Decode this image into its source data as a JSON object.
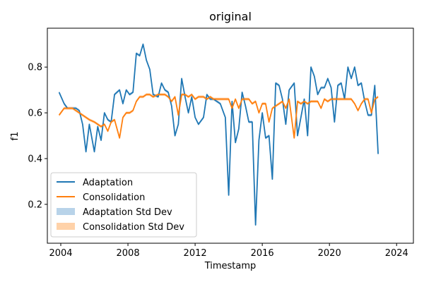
{
  "chart_data": {
    "type": "line",
    "title": "original",
    "xlabel": "Timestamp",
    "ylabel": "f1",
    "x_ticks": [
      2004,
      2008,
      2012,
      2016,
      2020,
      2024
    ],
    "y_ticks": [
      0.2,
      0.4,
      0.6,
      0.8
    ],
    "xlim": [
      2003.2,
      2025.0
    ],
    "ylim": [
      0.03,
      0.97
    ],
    "legend_position": "lower-left",
    "legend": [
      "Adaptation",
      "Consolidation",
      "Adaptation Std Dev",
      "Consolidation Std Dev"
    ],
    "series": [
      {
        "name": "Adaptation",
        "color": "#1f77b4",
        "points": [
          [
            2003.9,
            0.69
          ],
          [
            2004.2,
            0.64
          ],
          [
            2004.4,
            0.62
          ],
          [
            2004.7,
            0.62
          ],
          [
            2004.9,
            0.62
          ],
          [
            2005.1,
            0.61
          ],
          [
            2005.3,
            0.55
          ],
          [
            2005.5,
            0.43
          ],
          [
            2005.7,
            0.55
          ],
          [
            2006.0,
            0.43
          ],
          [
            2006.2,
            0.54
          ],
          [
            2006.4,
            0.48
          ],
          [
            2006.6,
            0.6
          ],
          [
            2006.8,
            0.57
          ],
          [
            2007.0,
            0.56
          ],
          [
            2007.2,
            0.68
          ],
          [
            2007.5,
            0.7
          ],
          [
            2007.7,
            0.64
          ],
          [
            2007.9,
            0.7
          ],
          [
            2008.1,
            0.68
          ],
          [
            2008.3,
            0.69
          ],
          [
            2008.5,
            0.86
          ],
          [
            2008.7,
            0.85
          ],
          [
            2008.9,
            0.9
          ],
          [
            2009.1,
            0.83
          ],
          [
            2009.3,
            0.79
          ],
          [
            2009.5,
            0.68
          ],
          [
            2009.8,
            0.67
          ],
          [
            2010.0,
            0.73
          ],
          [
            2010.2,
            0.7
          ],
          [
            2010.4,
            0.69
          ],
          [
            2010.6,
            0.63
          ],
          [
            2010.8,
            0.5
          ],
          [
            2011.0,
            0.55
          ],
          [
            2011.2,
            0.75
          ],
          [
            2011.4,
            0.67
          ],
          [
            2011.6,
            0.6
          ],
          [
            2011.8,
            0.67
          ],
          [
            2012.0,
            0.58
          ],
          [
            2012.2,
            0.55
          ],
          [
            2012.5,
            0.58
          ],
          [
            2012.7,
            0.68
          ],
          [
            2012.9,
            0.66
          ],
          [
            2013.1,
            0.66
          ],
          [
            2013.3,
            0.65
          ],
          [
            2013.5,
            0.64
          ],
          [
            2013.8,
            0.58
          ],
          [
            2014.0,
            0.24
          ],
          [
            2014.2,
            0.65
          ],
          [
            2014.4,
            0.47
          ],
          [
            2014.6,
            0.53
          ],
          [
            2014.8,
            0.69
          ],
          [
            2015.0,
            0.63
          ],
          [
            2015.2,
            0.56
          ],
          [
            2015.4,
            0.56
          ],
          [
            2015.6,
            0.11
          ],
          [
            2015.8,
            0.48
          ],
          [
            2016.0,
            0.6
          ],
          [
            2016.2,
            0.49
          ],
          [
            2016.4,
            0.5
          ],
          [
            2016.6,
            0.31
          ],
          [
            2016.8,
            0.73
          ],
          [
            2017.0,
            0.72
          ],
          [
            2017.2,
            0.66
          ],
          [
            2017.4,
            0.55
          ],
          [
            2017.6,
            0.7
          ],
          [
            2017.9,
            0.73
          ],
          [
            2018.1,
            0.5
          ],
          [
            2018.3,
            0.58
          ],
          [
            2018.5,
            0.66
          ],
          [
            2018.7,
            0.5
          ],
          [
            2018.9,
            0.8
          ],
          [
            2019.1,
            0.76
          ],
          [
            2019.3,
            0.68
          ],
          [
            2019.5,
            0.71
          ],
          [
            2019.7,
            0.71
          ],
          [
            2019.9,
            0.75
          ],
          [
            2020.1,
            0.71
          ],
          [
            2020.3,
            0.56
          ],
          [
            2020.5,
            0.72
          ],
          [
            2020.7,
            0.73
          ],
          [
            2020.9,
            0.66
          ],
          [
            2021.1,
            0.8
          ],
          [
            2021.3,
            0.75
          ],
          [
            2021.5,
            0.8
          ],
          [
            2021.7,
            0.72
          ],
          [
            2021.9,
            0.73
          ],
          [
            2022.1,
            0.65
          ],
          [
            2022.3,
            0.59
          ],
          [
            2022.5,
            0.59
          ],
          [
            2022.7,
            0.72
          ],
          [
            2022.9,
            0.42
          ]
        ]
      },
      {
        "name": "Consolidation",
        "color": "#ff7f0e",
        "points": [
          [
            2003.9,
            0.59
          ],
          [
            2004.2,
            0.62
          ],
          [
            2004.4,
            0.62
          ],
          [
            2004.7,
            0.62
          ],
          [
            2004.9,
            0.61
          ],
          [
            2005.1,
            0.6
          ],
          [
            2005.3,
            0.59
          ],
          [
            2005.5,
            0.58
          ],
          [
            2005.7,
            0.57
          ],
          [
            2006.0,
            0.56
          ],
          [
            2006.2,
            0.55
          ],
          [
            2006.4,
            0.54
          ],
          [
            2006.6,
            0.55
          ],
          [
            2006.8,
            0.52
          ],
          [
            2007.0,
            0.56
          ],
          [
            2007.2,
            0.57
          ],
          [
            2007.5,
            0.49
          ],
          [
            2007.7,
            0.58
          ],
          [
            2007.9,
            0.6
          ],
          [
            2008.1,
            0.6
          ],
          [
            2008.3,
            0.61
          ],
          [
            2008.5,
            0.65
          ],
          [
            2008.7,
            0.67
          ],
          [
            2008.9,
            0.67
          ],
          [
            2009.1,
            0.68
          ],
          [
            2009.3,
            0.68
          ],
          [
            2009.5,
            0.67
          ],
          [
            2009.8,
            0.68
          ],
          [
            2010.0,
            0.68
          ],
          [
            2010.2,
            0.68
          ],
          [
            2010.4,
            0.67
          ],
          [
            2010.6,
            0.65
          ],
          [
            2010.8,
            0.67
          ],
          [
            2011.0,
            0.59
          ],
          [
            2011.2,
            0.68
          ],
          [
            2011.4,
            0.68
          ],
          [
            2011.6,
            0.67
          ],
          [
            2011.8,
            0.68
          ],
          [
            2012.0,
            0.66
          ],
          [
            2012.2,
            0.67
          ],
          [
            2012.5,
            0.67
          ],
          [
            2012.7,
            0.66
          ],
          [
            2012.9,
            0.67
          ],
          [
            2013.1,
            0.66
          ],
          [
            2013.3,
            0.66
          ],
          [
            2013.5,
            0.66
          ],
          [
            2013.8,
            0.66
          ],
          [
            2014.0,
            0.66
          ],
          [
            2014.2,
            0.62
          ],
          [
            2014.4,
            0.66
          ],
          [
            2014.6,
            0.62
          ],
          [
            2014.8,
            0.66
          ],
          [
            2015.0,
            0.66
          ],
          [
            2015.2,
            0.66
          ],
          [
            2015.4,
            0.64
          ],
          [
            2015.6,
            0.65
          ],
          [
            2015.8,
            0.6
          ],
          [
            2016.0,
            0.64
          ],
          [
            2016.2,
            0.64
          ],
          [
            2016.4,
            0.56
          ],
          [
            2016.6,
            0.62
          ],
          [
            2016.8,
            0.63
          ],
          [
            2017.0,
            0.64
          ],
          [
            2017.2,
            0.65
          ],
          [
            2017.4,
            0.62
          ],
          [
            2017.6,
            0.66
          ],
          [
            2017.9,
            0.49
          ],
          [
            2018.1,
            0.65
          ],
          [
            2018.3,
            0.64
          ],
          [
            2018.5,
            0.65
          ],
          [
            2018.7,
            0.64
          ],
          [
            2018.9,
            0.65
          ],
          [
            2019.1,
            0.65
          ],
          [
            2019.3,
            0.65
          ],
          [
            2019.5,
            0.62
          ],
          [
            2019.7,
            0.66
          ],
          [
            2019.9,
            0.65
          ],
          [
            2020.1,
            0.66
          ],
          [
            2020.3,
            0.66
          ],
          [
            2020.5,
            0.66
          ],
          [
            2020.7,
            0.66
          ],
          [
            2020.9,
            0.66
          ],
          [
            2021.1,
            0.66
          ],
          [
            2021.3,
            0.66
          ],
          [
            2021.5,
            0.64
          ],
          [
            2021.7,
            0.61
          ],
          [
            2021.9,
            0.64
          ],
          [
            2022.1,
            0.66
          ],
          [
            2022.3,
            0.66
          ],
          [
            2022.5,
            0.6
          ],
          [
            2022.7,
            0.66
          ],
          [
            2022.9,
            0.67
          ]
        ]
      }
    ],
    "std_dev_colors": [
      "#a6c8e4",
      "#ffc793"
    ]
  }
}
